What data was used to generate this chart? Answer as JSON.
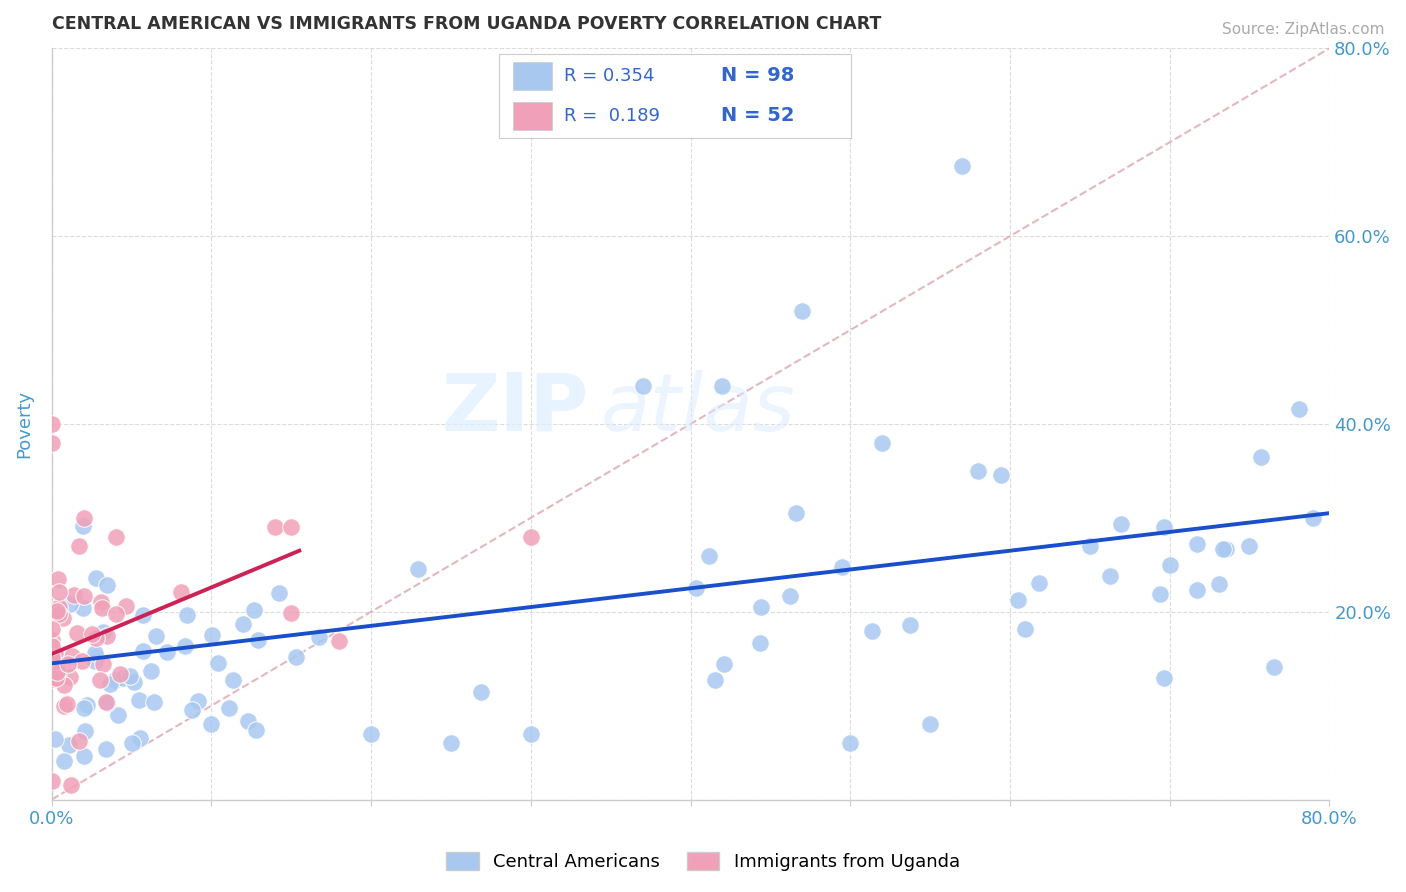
{
  "title": "CENTRAL AMERICAN VS IMMIGRANTS FROM UGANDA POVERTY CORRELATION CHART",
  "source": "Source: ZipAtlas.com",
  "ylabel": "Poverty",
  "r_blue": 0.354,
  "n_blue": 98,
  "r_pink": 0.189,
  "n_pink": 52,
  "blue_color": "#a8c8f0",
  "pink_color": "#f0a0b8",
  "trend_blue": "#1a4fcc",
  "trend_pink": "#cc2255",
  "trend_gray": "#ccaaaa",
  "xmin": 0.0,
  "xmax": 0.8,
  "ymin": 0.0,
  "ymax": 0.8,
  "watermark_zip": "ZIP",
  "watermark_atlas": "atlas",
  "grid_color": "#cccccc",
  "background_color": "#ffffff",
  "title_color": "#333333",
  "axis_label_color": "#4499cc",
  "tick_label_color": "#4499cc",
  "legend_text_color": "#3366cc"
}
